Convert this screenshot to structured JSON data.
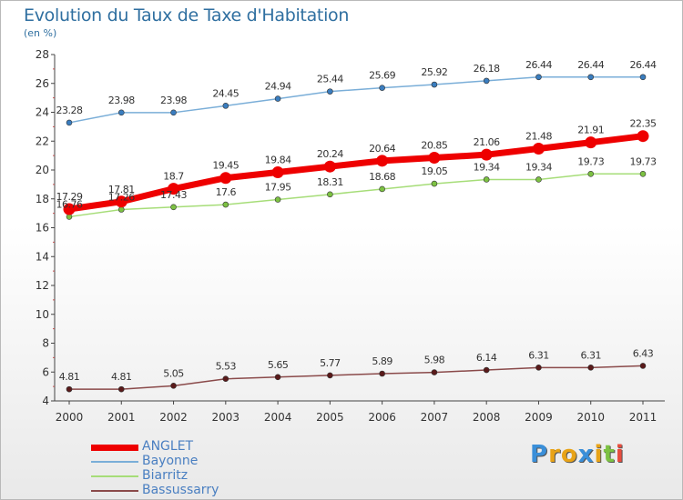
{
  "header": {
    "title": "Evolution du Taux de Taxe d'Habitation",
    "subtitle": "(en %)"
  },
  "logo": {
    "letters": [
      "P",
      "r",
      "o",
      "x",
      "i",
      "t",
      "i"
    ],
    "colors": [
      "#3a8fd9",
      "#e8a317",
      "#e8a317",
      "#3a8fd9",
      "#e8a317",
      "#7cc142",
      "#e84c3d"
    ]
  },
  "colors": {
    "title": "#2f6fa0",
    "axis": "#444444",
    "label": "#333333"
  },
  "chart_data": {
    "type": "line",
    "title": "Evolution du Taux de Taxe d'Habitation",
    "ylabel": "(en %)",
    "xlabel": "",
    "x": [
      "2000",
      "2001",
      "2002",
      "2003",
      "2004",
      "2005",
      "2006",
      "2007",
      "2008",
      "2009",
      "2010",
      "2011"
    ],
    "ylim": [
      4,
      28
    ],
    "yticks": [
      "4",
      "6",
      "8",
      "10",
      "12",
      "14",
      "16",
      "18",
      "20",
      "22",
      "24",
      "26",
      "28"
    ],
    "grid": false,
    "legend_position": "bottom-left",
    "series": [
      {
        "name": "ANGLET",
        "color": "#ee0000",
        "marker": "#ee0000",
        "emphasis": true,
        "values": [
          17.29,
          17.81,
          18.7,
          19.45,
          19.84,
          20.24,
          20.64,
          20.85,
          21.06,
          21.48,
          21.91,
          22.35
        ],
        "labels": [
          "17.29",
          "17.81",
          "18.7",
          "19.45",
          "19.84",
          "20.24",
          "20.64",
          "20.85",
          "21.06",
          "21.48",
          "21.91",
          "22.35"
        ]
      },
      {
        "name": "Bayonne",
        "color": "#7aaed8",
        "marker": "#3a7dbf",
        "emphasis": false,
        "values": [
          23.28,
          23.98,
          23.98,
          24.45,
          24.94,
          25.44,
          25.69,
          25.92,
          26.18,
          26.44,
          26.44,
          26.44
        ],
        "labels": [
          "23.28",
          "23.98",
          "23.98",
          "24.45",
          "24.94",
          "25.44",
          "25.69",
          "25.92",
          "26.18",
          "26.44",
          "26.44",
          "26.44"
        ]
      },
      {
        "name": "Biarritz",
        "color": "#a6dd78",
        "marker": "#7cc142",
        "emphasis": false,
        "values": [
          16.76,
          17.26,
          17.43,
          17.6,
          17.95,
          18.31,
          18.68,
          19.05,
          19.34,
          19.34,
          19.73,
          19.73
        ],
        "labels": [
          "16.76",
          "17.26",
          "17.43",
          "17.6",
          "17.95",
          "18.31",
          "18.68",
          "19.05",
          "19.34",
          "19.34",
          "19.73",
          "19.73"
        ]
      },
      {
        "name": "Bassussarry",
        "color": "#8a4a4a",
        "marker": "#5a1a1a",
        "emphasis": false,
        "values": [
          4.81,
          4.81,
          5.05,
          5.53,
          5.65,
          5.77,
          5.89,
          5.98,
          6.14,
          6.31,
          6.31,
          6.43
        ],
        "labels": [
          "4.81",
          "4.81",
          "5.05",
          "5.53",
          "5.65",
          "5.77",
          "5.89",
          "5.98",
          "6.14",
          "6.31",
          "6.31",
          "6.43"
        ]
      }
    ]
  }
}
